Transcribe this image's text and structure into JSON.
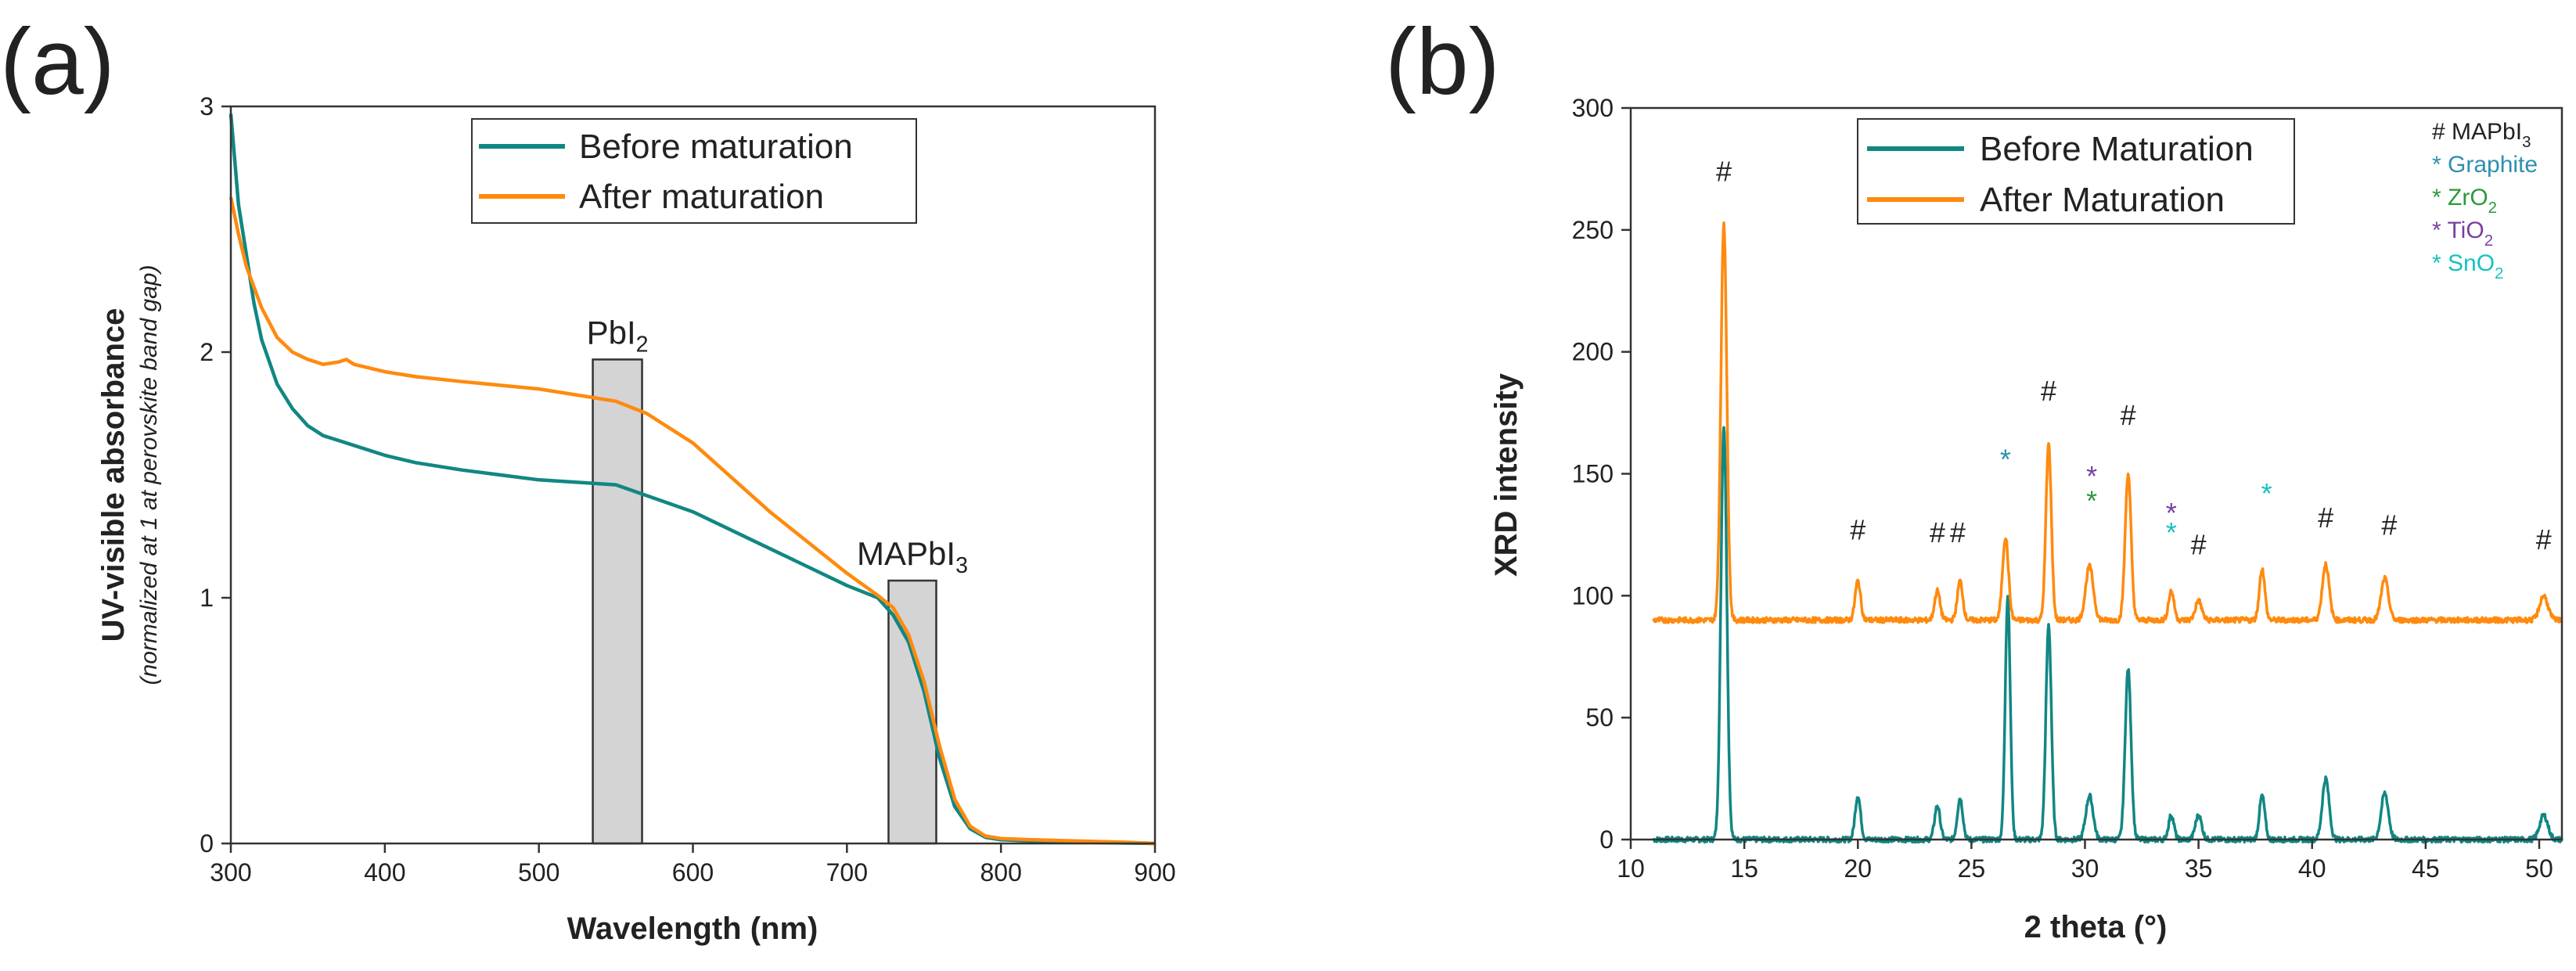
{
  "panel_a": {
    "panel_label": "(a)",
    "y_title": "UV-visible absorbance",
    "y_subtitle": "(normalized at 1 at perovskite band gap)",
    "x_title": "Wavelength (nm)",
    "x_ticks": [
      "300",
      "400",
      "500",
      "600",
      "700",
      "800",
      "900"
    ],
    "y_ticks": [
      "0",
      "1",
      "2",
      "3"
    ],
    "legend": [
      "Before maturation",
      "After maturation"
    ],
    "bands": [
      {
        "base": "PbI",
        "sub": "2",
        "from": 535,
        "to": 567,
        "height": 1.97
      },
      {
        "base": "MAPbI",
        "sub": "3",
        "from": 727,
        "to": 758,
        "height": 1.07
      }
    ]
  },
  "panel_b": {
    "panel_label": "(b)",
    "y_title": "XRD intensity",
    "x_title": "2 theta (°)",
    "x_ticks": [
      "10",
      "15",
      "20",
      "25",
      "30",
      "35",
      "40",
      "45",
      "50"
    ],
    "y_ticks": [
      "0",
      "50",
      "100",
      "150",
      "200",
      "250",
      "300"
    ],
    "legend": [
      "Before Maturation",
      "After Maturation"
    ],
    "phase_legend": [
      {
        "base": "# MAPbI",
        "sub": "3",
        "color": "#222222"
      },
      {
        "base": "* Graphite",
        "sub": "",
        "color": "#2f8fb0"
      },
      {
        "base": "* ZrO",
        "sub": "2",
        "color": "#2a9a3a"
      },
      {
        "base": "* TiO",
        "sub": "2",
        "color": "#7a3fa0"
      },
      {
        "base": "* SnO",
        "sub": "2",
        "color": "#17c1c1"
      }
    ]
  },
  "colors": {
    "before": "#118783",
    "after": "#ff8a0e",
    "band_fill": "#d4d4d4"
  },
  "chart_data": [
    {
      "type": "line",
      "panel": "a",
      "title": "",
      "xlabel": "Wavelength (nm)",
      "ylabel": "UV-visible absorbance (normalized at 1 at perovskite band gap)",
      "xlim": [
        300,
        900
      ],
      "ylim": [
        0,
        3
      ],
      "series": [
        {
          "name": "Before maturation",
          "color_key": "before",
          "x": [
            300,
            305,
            310,
            315,
            320,
            330,
            340,
            350,
            360,
            370,
            380,
            400,
            420,
            450,
            500,
            550,
            600,
            650,
            700,
            720,
            730,
            740,
            750,
            760,
            770,
            780,
            790,
            800,
            820,
            850,
            900
          ],
          "y": [
            2.97,
            2.6,
            2.4,
            2.2,
            2.05,
            1.87,
            1.77,
            1.7,
            1.66,
            1.64,
            1.62,
            1.58,
            1.55,
            1.52,
            1.48,
            1.46,
            1.35,
            1.2,
            1.05,
            1.0,
            0.93,
            0.82,
            0.62,
            0.35,
            0.15,
            0.06,
            0.025,
            0.015,
            0.01,
            0.005,
            0.0
          ]
        },
        {
          "name": "After maturation",
          "color_key": "after",
          "x": [
            300,
            305,
            310,
            320,
            330,
            340,
            350,
            360,
            370,
            375,
            380,
            400,
            420,
            450,
            500,
            550,
            570,
            600,
            650,
            700,
            720,
            730,
            740,
            750,
            760,
            770,
            780,
            790,
            800,
            820,
            850,
            880,
            900
          ],
          "y": [
            2.63,
            2.48,
            2.35,
            2.18,
            2.06,
            2.0,
            1.97,
            1.95,
            1.96,
            1.97,
            1.95,
            1.92,
            1.9,
            1.88,
            1.85,
            1.8,
            1.75,
            1.63,
            1.35,
            1.1,
            1.01,
            0.96,
            0.85,
            0.66,
            0.4,
            0.18,
            0.07,
            0.03,
            0.02,
            0.015,
            0.01,
            0.005,
            0.0
          ]
        }
      ],
      "bands": [
        {
          "label": "PbI2",
          "from": 535,
          "to": 567,
          "height": 1.97
        },
        {
          "label": "MAPbI3",
          "from": 727,
          "to": 758,
          "height": 1.07
        }
      ]
    },
    {
      "type": "line",
      "panel": "b",
      "title": "",
      "xlabel": "2 theta (°)",
      "ylabel": "XRD intensity",
      "xlim": [
        10,
        51
      ],
      "ylim": [
        0,
        300
      ],
      "series": [
        {
          "name": "Before Maturation",
          "color_key": "before",
          "x_range": [
            11,
            51
          ],
          "baseline": 0,
          "peaks": [
            {
              "x": 14.1,
              "h": 170,
              "w": 0.13
            },
            {
              "x": 20.0,
              "h": 18,
              "w": 0.12
            },
            {
              "x": 23.5,
              "h": 14,
              "w": 0.12
            },
            {
              "x": 24.5,
              "h": 17,
              "w": 0.12
            },
            {
              "x": 26.6,
              "h": 100,
              "w": 0.11
            },
            {
              "x": 28.4,
              "h": 88,
              "w": 0.12
            },
            {
              "x": 30.2,
              "h": 18,
              "w": 0.16
            },
            {
              "x": 31.9,
              "h": 70,
              "w": 0.13
            },
            {
              "x": 33.8,
              "h": 10,
              "w": 0.12
            },
            {
              "x": 35.0,
              "h": 10,
              "w": 0.14
            },
            {
              "x": 37.8,
              "h": 18,
              "w": 0.12
            },
            {
              "x": 40.6,
              "h": 25,
              "w": 0.15
            },
            {
              "x": 43.2,
              "h": 19,
              "w": 0.16
            },
            {
              "x": 50.2,
              "h": 10,
              "w": 0.18
            }
          ]
        },
        {
          "name": "After Maturation",
          "color_key": "after",
          "x_range": [
            11,
            51
          ],
          "baseline": 90,
          "peaks": [
            {
              "x": 14.1,
              "h": 163,
              "w": 0.13
            },
            {
              "x": 20.0,
              "h": 16,
              "w": 0.12
            },
            {
              "x": 23.5,
              "h": 12,
              "w": 0.12
            },
            {
              "x": 24.5,
              "h": 16,
              "w": 0.12
            },
            {
              "x": 26.5,
              "h": 34,
              "w": 0.13
            },
            {
              "x": 28.4,
              "h": 72,
              "w": 0.12
            },
            {
              "x": 30.2,
              "h": 22,
              "w": 0.17
            },
            {
              "x": 31.9,
              "h": 60,
              "w": 0.13
            },
            {
              "x": 33.8,
              "h": 12,
              "w": 0.12
            },
            {
              "x": 35.0,
              "h": 8,
              "w": 0.14
            },
            {
              "x": 37.8,
              "h": 21,
              "w": 0.12
            },
            {
              "x": 40.6,
              "h": 23,
              "w": 0.15
            },
            {
              "x": 43.2,
              "h": 17,
              "w": 0.16
            },
            {
              "x": 50.2,
              "h": 10,
              "w": 0.18
            }
          ]
        }
      ],
      "annotations": [
        {
          "text": "#",
          "x": 14.1,
          "y": 270,
          "color_key": "phase_mapbi3"
        },
        {
          "text": "#",
          "x": 20.0,
          "y": 123,
          "color_key": "phase_mapbi3"
        },
        {
          "text": "#",
          "x": 23.5,
          "y": 122,
          "color_key": "phase_mapbi3"
        },
        {
          "text": "#",
          "x": 24.4,
          "y": 122,
          "color_key": "phase_mapbi3"
        },
        {
          "text": "#",
          "x": 28.4,
          "y": 180,
          "color_key": "phase_mapbi3"
        },
        {
          "text": "#",
          "x": 31.9,
          "y": 170,
          "color_key": "phase_mapbi3"
        },
        {
          "text": "#",
          "x": 35.0,
          "y": 117,
          "color_key": "phase_mapbi3"
        },
        {
          "text": "#",
          "x": 40.6,
          "y": 128,
          "color_key": "phase_mapbi3"
        },
        {
          "text": "#",
          "x": 43.4,
          "y": 125,
          "color_key": "phase_mapbi3"
        },
        {
          "text": "#",
          "x": 50.2,
          "y": 119,
          "color_key": "phase_mapbi3"
        },
        {
          "text": "*",
          "x": 26.5,
          "y": 152,
          "color_key": "phase_graphite"
        },
        {
          "text": "*",
          "x": 30.3,
          "y": 145,
          "color_key": "phase_tio2"
        },
        {
          "text": "*",
          "x": 30.3,
          "y": 135,
          "color_key": "phase_zro2"
        },
        {
          "text": "*",
          "x": 33.8,
          "y": 130,
          "color_key": "phase_tio2"
        },
        {
          "text": "*",
          "x": 33.8,
          "y": 122,
          "color_key": "phase_sno2"
        },
        {
          "text": "*",
          "x": 38.0,
          "y": 138,
          "color_key": "phase_sno2"
        }
      ]
    }
  ],
  "annotation_colors": {
    "phase_mapbi3": "#222222",
    "phase_graphite": "#2f8fb0",
    "phase_zro2": "#2a9a3a",
    "phase_tio2": "#7a3fa0",
    "phase_sno2": "#17c1c1"
  }
}
